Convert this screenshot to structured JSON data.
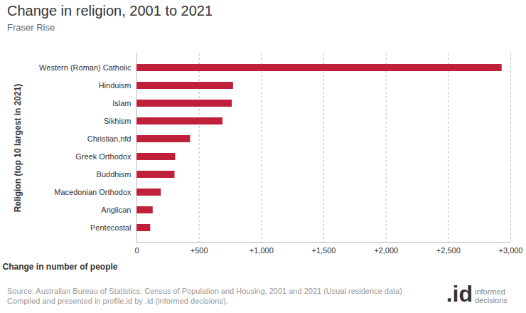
{
  "chart_data": {
    "type": "bar",
    "orientation": "horizontal",
    "title": "Change in religion, 2001 to 2021",
    "subtitle": "Fraser Rise",
    "x_label": "Change in number of people",
    "y_label": "Religion (top 10 largest in 2021)",
    "categories": [
      "Western (Roman) Catholic",
      "Hinduism",
      "Islam",
      "Sikhism",
      "Christian,nfd",
      "Greek Orthodox",
      "Buddhism",
      "Macedonian Orthodox",
      "Anglican",
      "Pentecostal"
    ],
    "values": [
      2930,
      775,
      765,
      690,
      430,
      310,
      305,
      195,
      130,
      110
    ],
    "color": "#c0203a",
    "xlim": [
      0,
      3000
    ],
    "xticks": [
      0,
      {
        "value": 500,
        "label": "+500"
      },
      {
        "value": 1000,
        "label": "+1,000"
      },
      {
        "value": 1500,
        "label": "+1,500"
      },
      {
        "value": 2000,
        "label": "+2,000"
      },
      {
        "value": 2500,
        "label": "+2,500"
      },
      {
        "value": 3000,
        "label": "+3,000"
      }
    ],
    "grid": true,
    "source": [
      "Source: Australian Bureau of Statistics, Census of Population and Housing, 2001 and 2021 (Usual residence data)",
      "Compiled and presented in profile.id by .id (informed decisions)."
    ],
    "logo": [
      ".id",
      "informed decisions"
    ]
  }
}
